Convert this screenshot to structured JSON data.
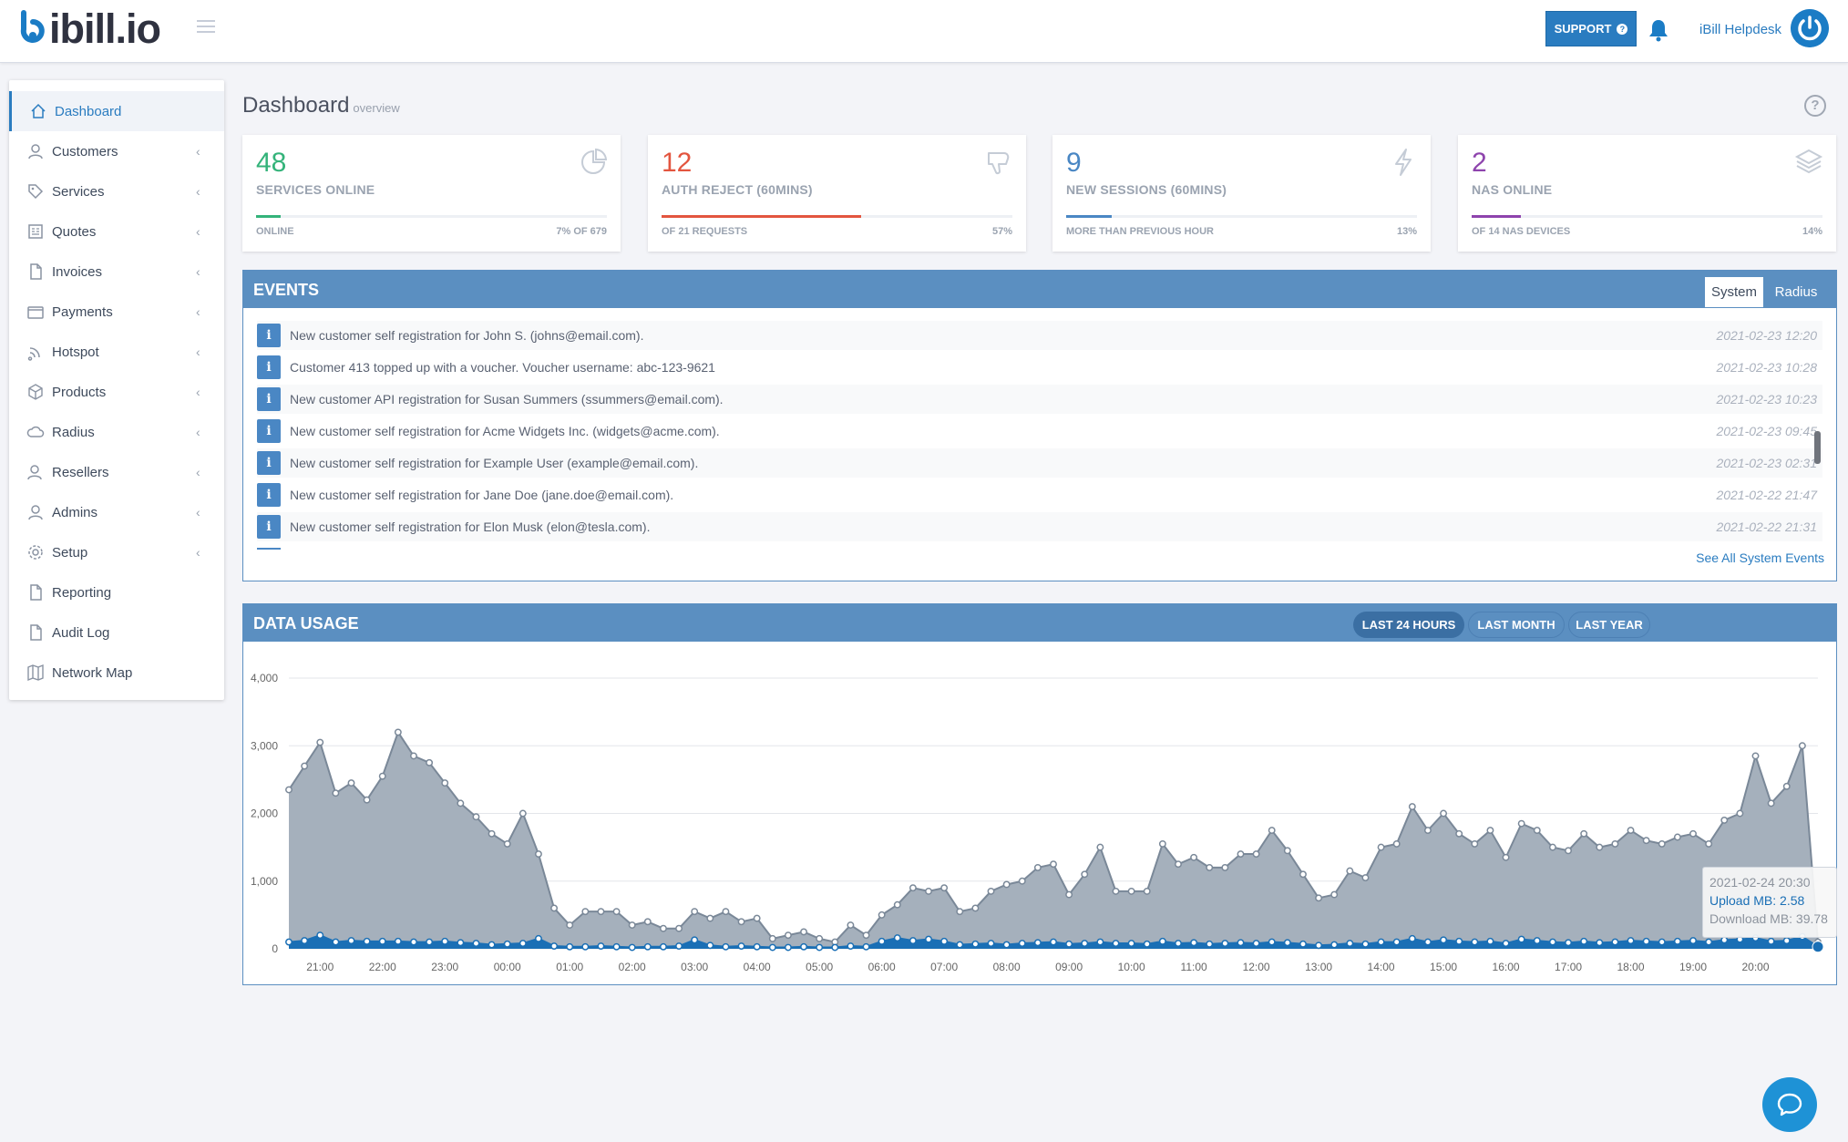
{
  "app": {
    "logo_text": "ibill.io",
    "support_label": "SUPPORT",
    "user_name": "iBill Helpdesk"
  },
  "sidebar": {
    "items": [
      {
        "label": "Dashboard",
        "icon": "home-icon",
        "active": true,
        "expandable": false
      },
      {
        "label": "Customers",
        "icon": "user-icon",
        "expandable": true
      },
      {
        "label": "Services",
        "icon": "tag-icon",
        "expandable": true
      },
      {
        "label": "Quotes",
        "icon": "quote-icon",
        "expandable": true
      },
      {
        "label": "Invoices",
        "icon": "document-icon",
        "expandable": true
      },
      {
        "label": "Payments",
        "icon": "wallet-icon",
        "expandable": true
      },
      {
        "label": "Hotspot",
        "icon": "wifi-icon",
        "expandable": true
      },
      {
        "label": "Products",
        "icon": "box-icon",
        "expandable": true
      },
      {
        "label": "Radius",
        "icon": "cloud-icon",
        "expandable": true
      },
      {
        "label": "Resellers",
        "icon": "reseller-icon",
        "expandable": true
      },
      {
        "label": "Admins",
        "icon": "admin-icon",
        "expandable": true
      },
      {
        "label": "Setup",
        "icon": "gear-icon",
        "expandable": true
      },
      {
        "label": "Reporting",
        "icon": "document-icon",
        "expandable": false
      },
      {
        "label": "Audit Log",
        "icon": "document-icon",
        "expandable": false
      },
      {
        "label": "Network Map",
        "icon": "map-icon",
        "expandable": false
      }
    ]
  },
  "page": {
    "title": "Dashboard",
    "subtitle": "overview"
  },
  "cards": [
    {
      "value": "48",
      "label": "SERVICES ONLINE",
      "footer_left": "ONLINE",
      "footer_right": "7% OF 679",
      "progress": 0.07,
      "color": "#34b37a",
      "icon": "pie-chart-icon"
    },
    {
      "value": "12",
      "label": "AUTH REJECT (60MINS)",
      "footer_left": "OF 21 REQUESTS",
      "footer_right": "57%",
      "progress": 0.57,
      "color": "#e3553f",
      "icon": "thumbs-down-icon"
    },
    {
      "value": "9",
      "label": "NEW SESSIONS (60MINS)",
      "footer_left": "MORE THAN PREVIOUS HOUR",
      "footer_right": "13%",
      "progress": 0.13,
      "color": "#4a87c4",
      "icon": "lightning-icon"
    },
    {
      "value": "2",
      "label": "NAS ONLINE",
      "footer_left": "OF 14 NAS DEVICES",
      "footer_right": "14%",
      "progress": 0.14,
      "color": "#8e44ad",
      "icon": "layers-icon"
    }
  ],
  "events": {
    "title": "EVENTS",
    "tabs": [
      "System",
      "Radius"
    ],
    "active_tab": "System",
    "rows": [
      {
        "text": "New customer self registration for John S. (johns@email.com).",
        "time": "2021-02-23 12:20"
      },
      {
        "text": "Customer 413 topped up with a voucher. Voucher username: abc-123-9621",
        "time": "2021-02-23 10:28"
      },
      {
        "text": "New customer API registration for Susan Summers (ssummers@email.com).",
        "time": "2021-02-23 10:23"
      },
      {
        "text": "New customer self registration for Acme Widgets Inc. (widgets@acme.com).",
        "time": "2021-02-23 09:45"
      },
      {
        "text": "New customer self registration for Example User (example@email.com).",
        "time": "2021-02-23 02:31"
      },
      {
        "text": "New customer self registration for Jane Doe (jane.doe@email.com).",
        "time": "2021-02-22 21:47"
      },
      {
        "text": "New customer self registration for Elon Musk (elon@tesla.com).",
        "time": "2021-02-22 21:31"
      }
    ],
    "see_all": "See All System Events"
  },
  "data_usage": {
    "title": "DATA USAGE",
    "ranges": [
      "LAST 24 HOURS",
      "LAST MONTH",
      "LAST YEAR"
    ],
    "active_range": "LAST 24 HOURS",
    "tooltip": {
      "time": "2021-02-24 20:30",
      "upload": "Upload MB: 2.58",
      "download": "Download MB: 39.78"
    }
  },
  "chart_data": {
    "type": "area",
    "ylim": [
      0,
      4000
    ],
    "yticks": [
      0,
      1000,
      2000,
      3000,
      4000
    ],
    "ytick_labels": [
      "0",
      "1,000",
      "2,000",
      "3,000",
      "4,000"
    ],
    "x_tick_labels": [
      "21:00",
      "22:00",
      "23:00",
      "00:00",
      "01:00",
      "02:00",
      "03:00",
      "04:00",
      "05:00",
      "06:00",
      "07:00",
      "08:00",
      "09:00",
      "10:00",
      "11:00",
      "12:00",
      "13:00",
      "14:00",
      "15:00",
      "16:00",
      "17:00",
      "18:00",
      "19:00",
      "20:00"
    ],
    "x_start_hour": 20.5,
    "x_step_hours": 0.25,
    "series": [
      {
        "color": "#a5b0bc",
        "stroke": "#7a8898",
        "values": [
          2350,
          2700,
          3050,
          2300,
          2450,
          2200,
          2550,
          3200,
          2850,
          2750,
          2450,
          2150,
          1950,
          1700,
          1550,
          2000,
          1400,
          600,
          350,
          550,
          550,
          550,
          350,
          400,
          300,
          300,
          550,
          450,
          550,
          400,
          450,
          150,
          200,
          250,
          150,
          100,
          350,
          200,
          500,
          650,
          900,
          850,
          900,
          550,
          600,
          850,
          950,
          1000,
          1200,
          1250,
          800,
          1100,
          1500,
          850,
          850,
          850,
          1550,
          1250,
          1350,
          1200,
          1200,
          1400,
          1400,
          1750,
          1450,
          1100,
          750,
          800,
          1150,
          1050,
          1500,
          1550,
          2100,
          1750,
          2000,
          1700,
          1550,
          1750,
          1350,
          1850,
          1750,
          1500,
          1450,
          1700,
          1500,
          1550,
          1750,
          1600,
          1550,
          1650,
          1700,
          1550,
          1900,
          2000,
          2850,
          2150,
          2400,
          3000,
          100
        ],
        "tooltip_value": 39.78
      },
      {
        "color": "#1a6fb5",
        "stroke": "#1a6fb5",
        "values": [
          100,
          120,
          200,
          100,
          120,
          110,
          110,
          110,
          100,
          100,
          110,
          90,
          80,
          60,
          70,
          80,
          150,
          40,
          30,
          30,
          40,
          30,
          20,
          30,
          30,
          40,
          130,
          50,
          30,
          40,
          30,
          20,
          20,
          30,
          20,
          20,
          40,
          30,
          110,
          160,
          120,
          140,
          110,
          60,
          70,
          80,
          60,
          80,
          90,
          100,
          70,
          80,
          100,
          80,
          80,
          70,
          110,
          80,
          90,
          70,
          80,
          90,
          80,
          100,
          90,
          70,
          50,
          60,
          80,
          70,
          100,
          100,
          150,
          100,
          130,
          110,
          100,
          110,
          80,
          140,
          120,
          100,
          90,
          110,
          90,
          100,
          120,
          110,
          100,
          110,
          120,
          100,
          130,
          140,
          160,
          110,
          120,
          180,
          30
        ],
        "tooltip_value": 2.58
      }
    ]
  }
}
